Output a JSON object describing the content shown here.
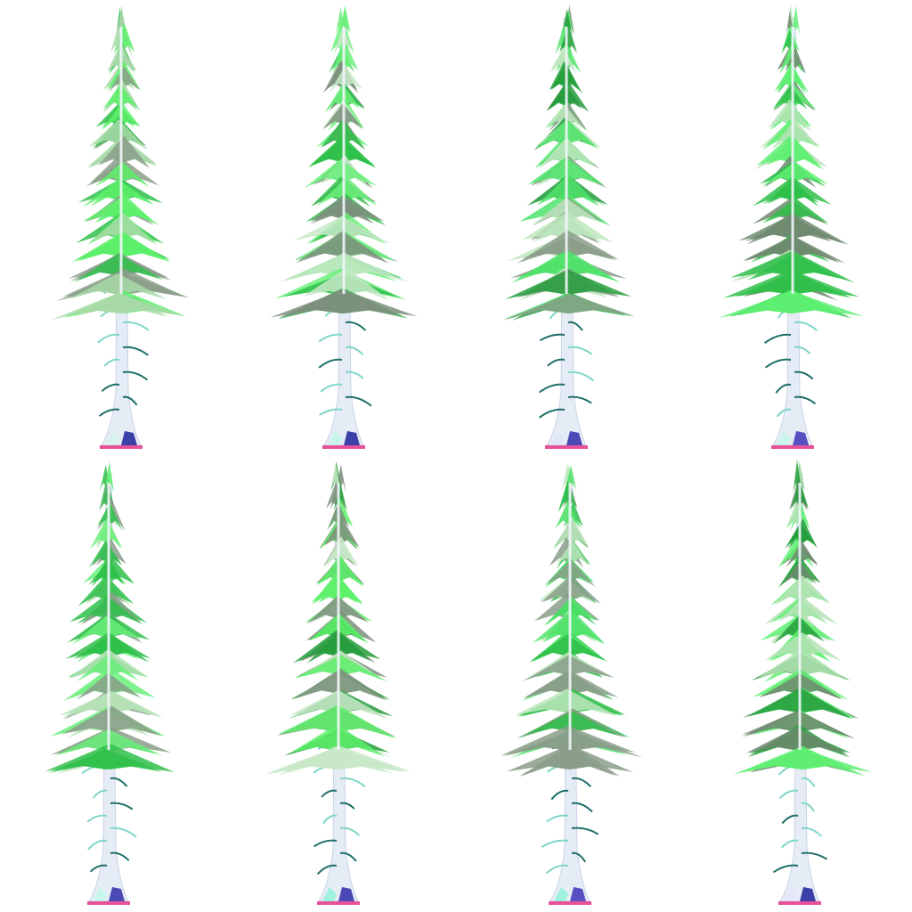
{
  "scene": {
    "background": "#ffffff",
    "trees": [
      {
        "canopy_variant": 0,
        "foliage_colors": [
          "#5df06a",
          "#2fbf4a",
          "#a8d9a8",
          "#8a9e8a"
        ],
        "base_colors": [
          "#3b3fa8",
          "#d9f2ee"
        ]
      },
      {
        "canopy_variant": 1,
        "foliage_colors": [
          "#6af07a",
          "#2fbf4a",
          "#c8e8c8",
          "#7c8f7c"
        ],
        "base_colors": [
          "#3b3fa8",
          "#c9f5ea"
        ]
      },
      {
        "canopy_variant": 2,
        "foliage_colors": [
          "#4fe36a",
          "#249e3c",
          "#bde6bd",
          "#8a9e8a"
        ],
        "base_colors": [
          "#4a49b5",
          "#e0e6f8"
        ]
      },
      {
        "canopy_variant": 3,
        "foliage_colors": [
          "#5ef072",
          "#2fbf4a",
          "#b6e2b6",
          "#6f8a6f"
        ],
        "base_colors": [
          "#5a4fc0",
          "#c9f5ea"
        ]
      },
      {
        "canopy_variant": 4,
        "foliage_colors": [
          "#6af07a",
          "#2fbf4a",
          "#b6e2b6",
          "#8a9e8a"
        ],
        "base_colors": [
          "#4a49b5",
          "#c9f5ea"
        ]
      },
      {
        "canopy_variant": 5,
        "foliage_colors": [
          "#5df06a",
          "#249e3c",
          "#c8e8c8",
          "#7c8f7c"
        ],
        "base_colors": [
          "#4a49b5",
          "#9ef2dc"
        ]
      },
      {
        "canopy_variant": 6,
        "foliage_colors": [
          "#4fe36a",
          "#2fbf4a",
          "#bde6bd",
          "#8a9e8a"
        ],
        "base_colors": [
          "#5a4fc0",
          "#9ef2dc"
        ]
      },
      {
        "canopy_variant": 7,
        "foliage_colors": [
          "#5ef072",
          "#249e3c",
          "#b6e2b6",
          "#6f8a6f"
        ],
        "base_colors": [
          "#3b3fa8",
          "#e6e6fa"
        ]
      }
    ],
    "trunk_color": "#e6ecf5",
    "ground_color": "#e8509a"
  }
}
